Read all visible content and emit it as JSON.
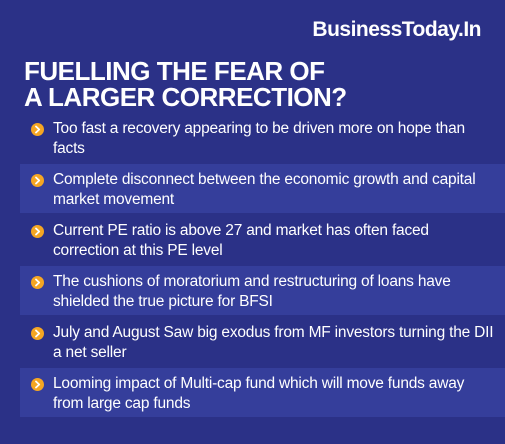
{
  "brand": "BusinessToday.In",
  "headline": {
    "line1": "FUELLING THE FEAR OF",
    "line2": "A LARGER CORRECTION?"
  },
  "colors": {
    "background": "#2b3187",
    "row_shade": "#353e9b",
    "bullet": "#f5a623",
    "text": "#ffffff"
  },
  "bullet_icon": "chevron-right-circle-icon",
  "points": [
    "Too fast a recovery appearing to be driven more on hope than facts",
    "Complete disconnect between the economic growth and capital market movement",
    "Current PE ratio is above 27 and market has often faced correction at this PE level",
    "The cushions of moratorium and restructuring of loans have shielded the true picture for BFSI",
    "July and August Saw big exodus from MF investors turning the DII a net seller",
    "Looming impact of Multi-cap fund which will move funds away from large cap funds"
  ]
}
